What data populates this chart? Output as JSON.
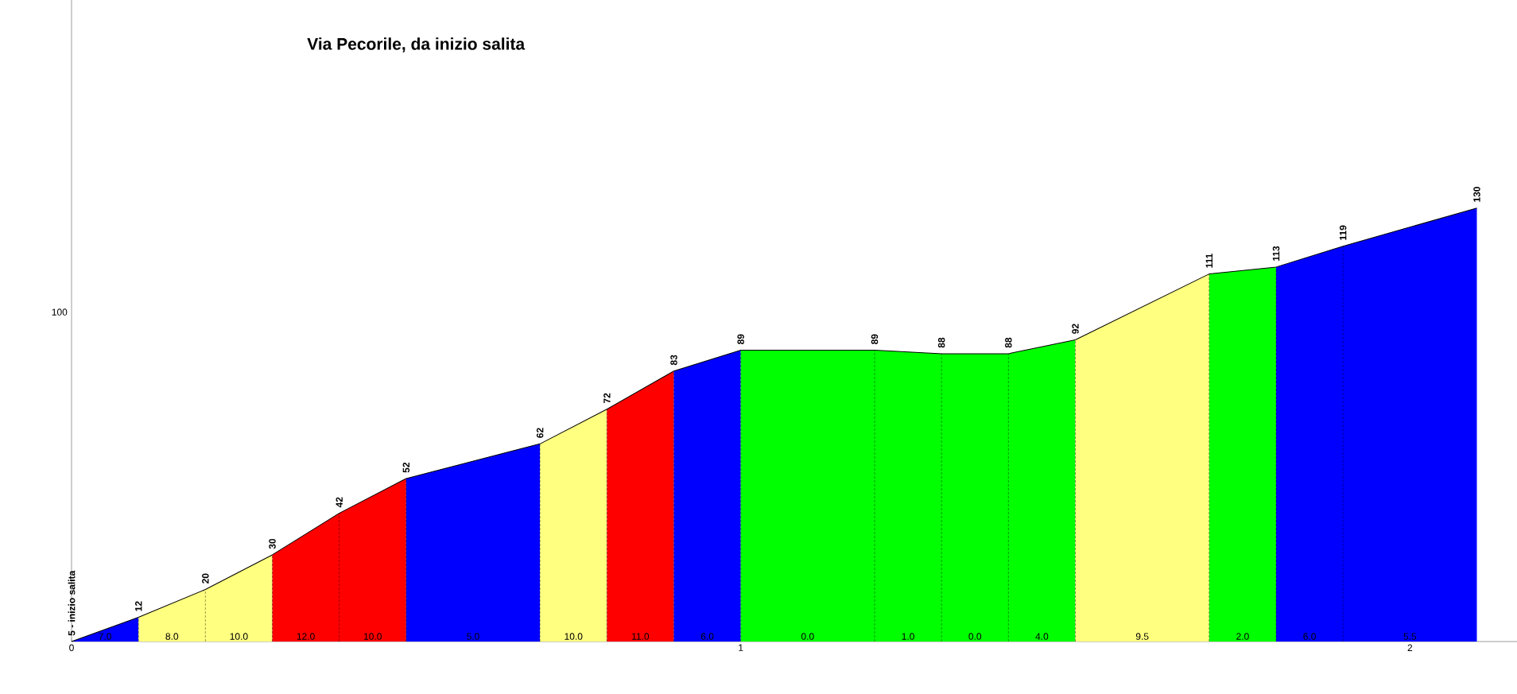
{
  "chart_data": {
    "type": "area",
    "title": "Via Pecorile, da inizio salita",
    "xlim": [
      0,
      2.16
    ],
    "ylim": [
      5,
      190
    ],
    "xticks": [
      0,
      1,
      2
    ],
    "grid": false,
    "series": [
      {
        "type": "line",
        "color": "#000000",
        "x": [
          0,
          0.1,
          0.2,
          0.3,
          0.4,
          0.5,
          0.7,
          0.8,
          0.9,
          1.0,
          1.2,
          1.3,
          1.4,
          1.5,
          1.7,
          1.8,
          1.9,
          2.1
        ],
        "values": [
          5,
          12,
          20,
          30,
          42,
          52,
          62,
          72,
          83,
          89,
          89,
          88,
          88,
          92,
          111,
          113,
          119,
          130
        ],
        "value_labels": [
          "5 - inizio salita",
          "12",
          "20",
          "30",
          "42",
          "52",
          "62",
          "72",
          "83",
          "89",
          "89",
          "88",
          "88",
          "92",
          "111",
          "113",
          "119",
          "130"
        ]
      },
      {
        "color": "#0000ff",
        "x": [
          0,
          0.1
        ],
        "values": [
          5,
          12
        ]
      },
      {
        "color": "#ffff80",
        "x": [
          0.1,
          0.2,
          0.3
        ],
        "values": [
          12,
          20,
          30
        ]
      },
      {
        "color": "#ff0000",
        "x": [
          0.3,
          0.4,
          0.5
        ],
        "values": [
          30,
          42,
          52
        ]
      },
      {
        "color": "#0000ff",
        "x": [
          0.5,
          0.7
        ],
        "values": [
          52,
          62
        ]
      },
      {
        "color": "#ffff80",
        "x": [
          0.7,
          0.8
        ],
        "values": [
          62,
          72
        ]
      },
      {
        "color": "#ff0000",
        "x": [
          0.8,
          0.9
        ],
        "values": [
          72,
          83
        ]
      },
      {
        "color": "#0000ff",
        "x": [
          0.9,
          1.0
        ],
        "values": [
          83,
          89
        ]
      },
      {
        "color": "#00ff00",
        "x": [
          1.0,
          1.2,
          1.3,
          1.4,
          1.5
        ],
        "values": [
          89,
          89,
          88,
          88,
          92
        ]
      },
      {
        "color": "#ffff80",
        "x": [
          1.5,
          1.7
        ],
        "values": [
          92,
          111
        ]
      },
      {
        "color": "#00ff00",
        "x": [
          1.7,
          1.8
        ],
        "values": [
          111,
          113
        ]
      },
      {
        "color": "#0000ff",
        "x": [
          1.8,
          1.9,
          2.1
        ],
        "values": [
          113,
          119,
          130
        ]
      }
    ],
    "annotations": [
      "100",
      {
        "text": "7.0",
        "x": 0.05,
        "y": 5
      },
      {
        "text": "8.0",
        "x": 0.15,
        "y": 5
      },
      {
        "text": "10.0",
        "x": 0.25,
        "y": 5
      },
      {
        "text": "12.0",
        "x": 0.35,
        "y": 5
      },
      {
        "text": "10.0",
        "x": 0.45,
        "y": 5
      },
      {
        "text": "5.0",
        "x": 0.6,
        "y": 5
      },
      {
        "text": "10.0",
        "x": 0.75,
        "y": 5
      },
      {
        "text": "11.0",
        "x": 0.85,
        "y": 5
      },
      {
        "text": "6.0",
        "x": 0.95,
        "y": 5
      },
      {
        "text": "0.0",
        "x": 1.1,
        "y": 5
      },
      {
        "text": "1.0",
        "x": 1.25,
        "y": 5
      },
      {
        "text": "0.0",
        "x": 1.35,
        "y": 5
      },
      {
        "text": "4.0",
        "x": 1.45,
        "y": 5
      },
      {
        "text": "9.5",
        "x": 1.6,
        "y": 5
      },
      {
        "text": "2.0",
        "x": 1.75,
        "y": 5
      },
      {
        "text": "6.0",
        "x": 1.85,
        "y": 5
      },
      {
        "text": "5.5",
        "x": 2.0,
        "y": 5
      }
    ]
  }
}
